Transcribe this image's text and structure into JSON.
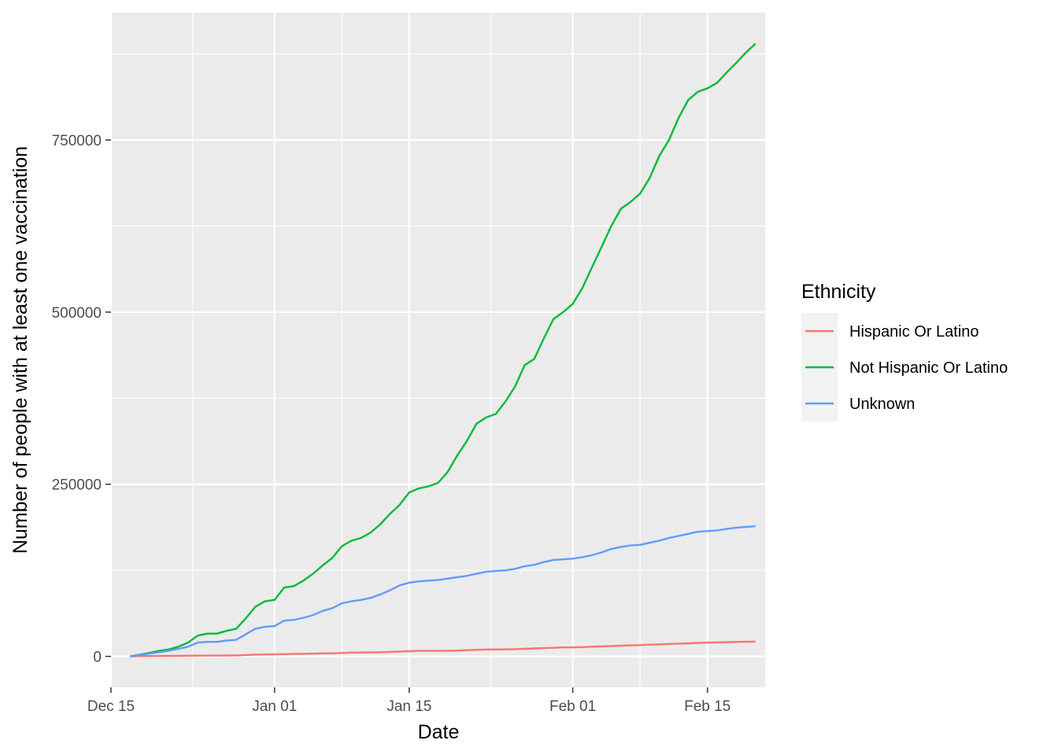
{
  "chart_data": {
    "type": "line",
    "title": "",
    "xlabel": "Date",
    "ylabel": "Number of people with at least one vaccination",
    "x_start": "2020-12-17",
    "x_end": "2021-02-20",
    "xlim": [
      "2020-12-15",
      "2021-02-21"
    ],
    "ylim": [
      -45000,
      935000
    ],
    "x_ticks": [
      {
        "date": "2020-12-15",
        "label": "Dec 15"
      },
      {
        "date": "2021-01-01",
        "label": "Jan 01"
      },
      {
        "date": "2021-01-15",
        "label": "Jan 15"
      },
      {
        "date": "2021-02-01",
        "label": "Feb 01"
      },
      {
        "date": "2021-02-15",
        "label": "Feb 15"
      }
    ],
    "y_ticks": [
      {
        "value": 0,
        "label": "0"
      },
      {
        "value": 250000,
        "label": "250000"
      },
      {
        "value": 500000,
        "label": "500000"
      },
      {
        "value": 750000,
        "label": "750000"
      }
    ],
    "grid": true,
    "legend": {
      "title": "Ethnicity",
      "position": "right"
    },
    "series": [
      {
        "name": "Hispanic Or Latino",
        "color": "#F8766D",
        "values": [
          0,
          300,
          500,
          600,
          700,
          800,
          900,
          1000,
          1100,
          1200,
          1300,
          1400,
          2000,
          2500,
          2700,
          3000,
          3200,
          3500,
          3800,
          4000,
          4300,
          4500,
          5000,
          5500,
          5600,
          5800,
          6000,
          6500,
          7000,
          7500,
          8000,
          8000,
          8000,
          8200,
          8500,
          9000,
          9500,
          10000,
          10000,
          10200,
          10500,
          11000,
          11500,
          12000,
          12500,
          13000,
          13000,
          13500,
          14000,
          14500,
          15000,
          15500,
          16000,
          16500,
          17000,
          17500,
          18000,
          18500,
          19000,
          19500,
          20000,
          20300,
          20600,
          21000,
          21200,
          21500
        ]
      },
      {
        "name": "Not Hispanic Or Latino",
        "color": "#00BA38",
        "values": [
          0,
          2500,
          5000,
          8000,
          10000,
          14000,
          20000,
          30000,
          33000,
          33000,
          37000,
          40000,
          55000,
          72000,
          80000,
          82000,
          100000,
          102000,
          110000,
          120000,
          132000,
          143000,
          160000,
          168000,
          172000,
          180000,
          192000,
          207000,
          220000,
          238000,
          244000,
          247000,
          252000,
          268000,
          292000,
          313000,
          338000,
          347000,
          352000,
          370000,
          392000,
          423000,
          432000,
          462000,
          490000,
          500000,
          512000,
          535000,
          565000,
          595000,
          625000,
          650000,
          660000,
          672000,
          695000,
          727000,
          750000,
          782000,
          808000,
          820000,
          825000,
          833000,
          848000,
          862000,
          877000,
          890000
        ]
      },
      {
        "name": "Unknown",
        "color": "#619CFF",
        "values": [
          0,
          2000,
          4000,
          6000,
          8000,
          11000,
          14000,
          20000,
          21000,
          21000,
          23000,
          24000,
          32000,
          40000,
          43000,
          44000,
          52000,
          53000,
          56000,
          60000,
          66000,
          70000,
          77000,
          80000,
          82000,
          85000,
          90000,
          96000,
          103000,
          107000,
          109000,
          110000,
          111000,
          113000,
          115000,
          117000,
          120000,
          123000,
          124000,
          125000,
          127000,
          131000,
          133000,
          137000,
          140000,
          141000,
          142000,
          144000,
          147000,
          151000,
          156000,
          159000,
          161000,
          162000,
          165000,
          168000,
          172000,
          175000,
          178000,
          181000,
          182000,
          183000,
          185000,
          187000,
          188000,
          189000
        ]
      }
    ]
  }
}
